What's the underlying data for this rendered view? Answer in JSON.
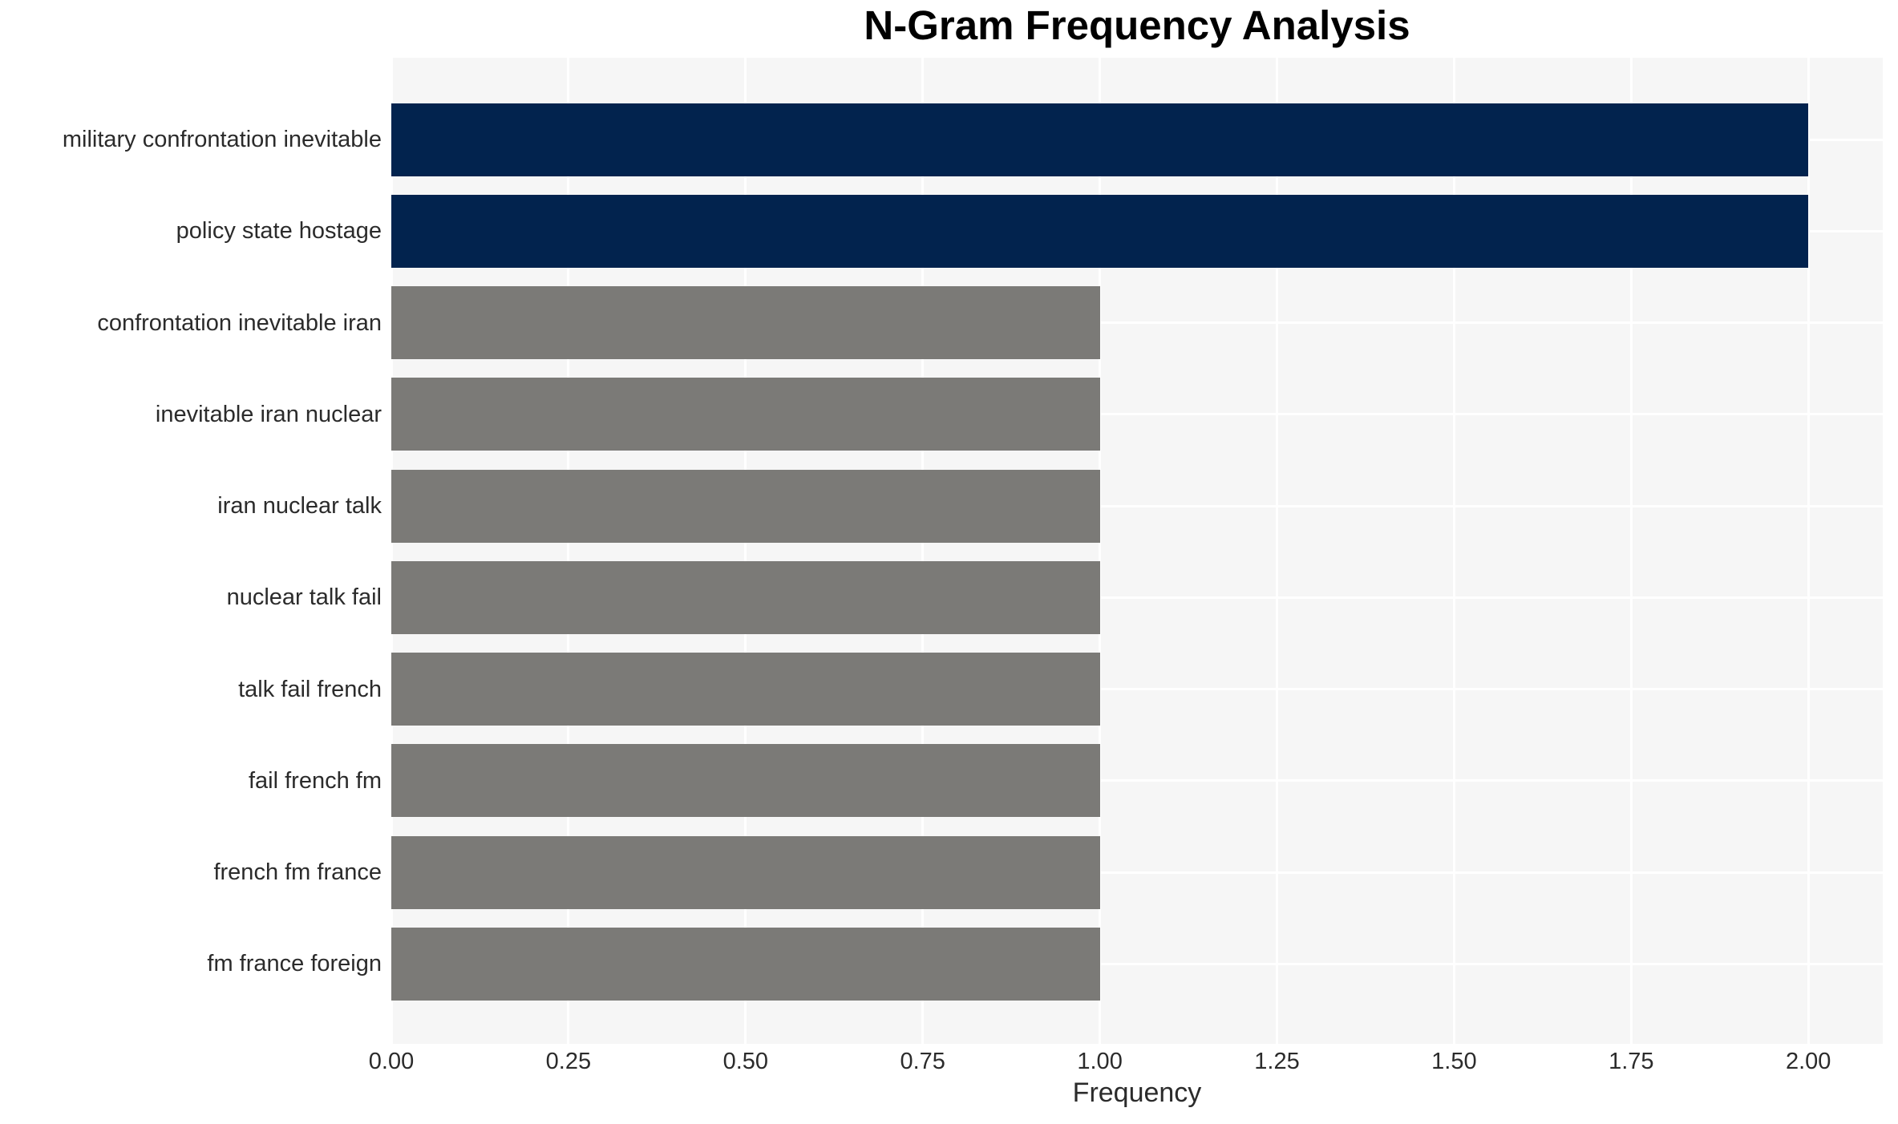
{
  "chart_data": {
    "type": "bar",
    "orientation": "horizontal",
    "title": "N-Gram Frequency Analysis",
    "xlabel": "Frequency",
    "ylabel": "",
    "categories": [
      "military confrontation inevitable",
      "policy state hostage",
      "confrontation inevitable iran",
      "inevitable iran nuclear",
      "iran nuclear talk",
      "nuclear talk fail",
      "talk fail french",
      "fail french fm",
      "french fm france",
      "fm france foreign"
    ],
    "values": [
      2,
      2,
      1,
      1,
      1,
      1,
      1,
      1,
      1,
      1
    ],
    "bar_colors": [
      "#02234e",
      "#02234e",
      "#7b7a77",
      "#7b7a77",
      "#7b7a77",
      "#7b7a77",
      "#7b7a77",
      "#7b7a77",
      "#7b7a77",
      "#7b7a77"
    ],
    "xticks": [
      "0.00",
      "0.25",
      "0.50",
      "0.75",
      "1.00",
      "1.25",
      "1.50",
      "1.75",
      "2.00"
    ],
    "xlim": [
      0,
      2.105
    ],
    "grid": "on",
    "grid_color": "#ffffff",
    "plot_background": "#f6f6f6",
    "figure_background": "#ffffff",
    "text_color": "#2b2b2b",
    "title_color": "#000000",
    "legend": "none"
  }
}
